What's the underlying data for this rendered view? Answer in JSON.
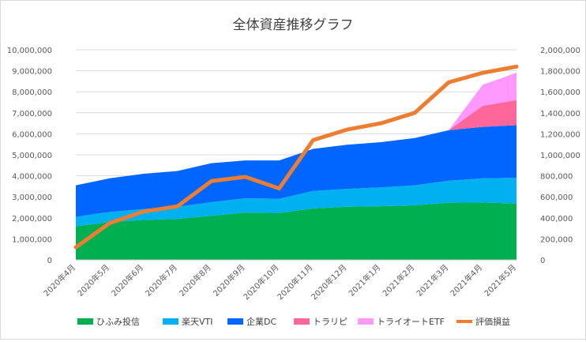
{
  "chart_data": {
    "type": "area",
    "title": "全体資産推移グラフ",
    "categories": [
      "2020年4月",
      "2020年5月",
      "2020年6月",
      "2020年7月",
      "2020年8月",
      "2020年9月",
      "2020年10月",
      "2020年11月",
      "2020年12月",
      "2021年1月",
      "2021年2月",
      "2021年3月",
      "2021年4月",
      "2021年5月"
    ],
    "stack_series": [
      {
        "name": "ひふみ投信",
        "color": "#00b050",
        "values": [
          1600000,
          1800000,
          1900000,
          1950000,
          2100000,
          2250000,
          2230000,
          2450000,
          2530000,
          2550000,
          2600000,
          2720000,
          2730000,
          2680000
        ]
      },
      {
        "name": "楽天VTI",
        "color": "#00b0f0",
        "values": [
          450000,
          480000,
          520000,
          580000,
          650000,
          680000,
          680000,
          830000,
          850000,
          900000,
          950000,
          1050000,
          1150000,
          1230000
        ]
      },
      {
        "name": "企業DC",
        "color": "#0066ff",
        "values": [
          1500000,
          1600000,
          1680000,
          1700000,
          1850000,
          1800000,
          1820000,
          2000000,
          2100000,
          2150000,
          2250000,
          2400000,
          2450000,
          2500000
        ]
      },
      {
        "name": "トラリピ",
        "color": "#ff6699",
        "values": [
          0,
          0,
          0,
          0,
          0,
          0,
          0,
          0,
          0,
          0,
          0,
          0,
          1000000,
          1200000
        ]
      },
      {
        "name": "トライオートETF",
        "color": "#ff99ff",
        "values": [
          0,
          0,
          0,
          0,
          0,
          0,
          0,
          0,
          0,
          0,
          0,
          0,
          1000000,
          1300000
        ]
      }
    ],
    "line_series": {
      "name": "評価損益",
      "color": "#ed7d31",
      "axis": "right",
      "values": [
        120000,
        350000,
        460000,
        510000,
        750000,
        790000,
        680000,
        1140000,
        1240000,
        1300000,
        1400000,
        1690000,
        1780000,
        1840000
      ]
    },
    "left_axis": {
      "min": 0,
      "max": 10000000,
      "ticks": [
        "0",
        "1,000,000",
        "2,000,000",
        "3,000,000",
        "4,000,000",
        "5,000,000",
        "6,000,000",
        "7,000,000",
        "8,000,000",
        "9,000,000",
        "10,000,000"
      ]
    },
    "right_axis": {
      "min": 0,
      "max": 2000000,
      "ticks": [
        "0",
        "200,000",
        "400,000",
        "600,000",
        "800,000",
        "1,000,000",
        "1,200,000",
        "1,400,000",
        "1,600,000",
        "1,800,000",
        "2,000,000"
      ]
    },
    "legend_position": "bottom",
    "grid": true
  }
}
